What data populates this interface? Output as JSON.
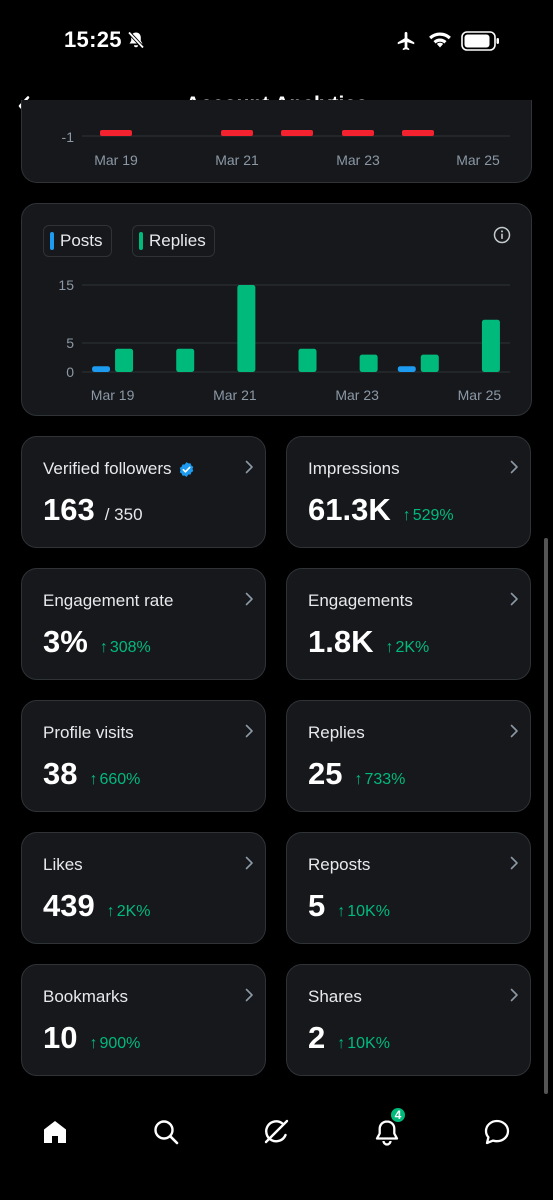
{
  "status_bar": {
    "time": "15:25"
  },
  "header": {
    "title": "Account Analytics"
  },
  "top_chart": {
    "y_tick_label": "-1",
    "x_labels": [
      "Mar 19",
      "Mar 21",
      "Mar 23",
      "Mar 25"
    ],
    "bar_color": "#f4212e"
  },
  "chart_data": {
    "type": "bar",
    "categories": [
      "Mar 19",
      "Mar 20",
      "Mar 21",
      "Mar 22",
      "Mar 23",
      "Mar 24",
      "Mar 25"
    ],
    "x_tick_labels": [
      "Mar 19",
      "Mar 21",
      "Mar 23",
      "Mar 25"
    ],
    "series": [
      {
        "name": "Posts",
        "color": "#1d9bf0",
        "values": [
          1,
          0,
          0,
          0,
          0,
          1,
          0
        ]
      },
      {
        "name": "Replies",
        "color": "#00ba7c",
        "values": [
          4,
          4,
          15,
          4,
          3,
          3,
          9
        ]
      }
    ],
    "y_ticks": [
      0,
      5,
      15
    ],
    "ylim": [
      0,
      15
    ],
    "grid": true,
    "legend_position": "top-left"
  },
  "legend": {
    "posts": "Posts",
    "replies": "Replies"
  },
  "stats": [
    {
      "label": "Verified followers",
      "value": "163",
      "total": "/ 350",
      "change": "",
      "verified": true
    },
    {
      "label": "Impressions",
      "value": "61.3K",
      "total": "",
      "change": "529%"
    },
    {
      "label": "Engagement rate",
      "value": "3%",
      "total": "",
      "change": "308%"
    },
    {
      "label": "Engagements",
      "value": "1.8K",
      "total": "",
      "change": "2K%"
    },
    {
      "label": "Profile visits",
      "value": "38",
      "total": "",
      "change": "660%"
    },
    {
      "label": "Replies",
      "value": "25",
      "total": "",
      "change": "733%"
    },
    {
      "label": "Likes",
      "value": "439",
      "total": "",
      "change": "2K%"
    },
    {
      "label": "Reposts",
      "value": "5",
      "total": "",
      "change": "10K%"
    },
    {
      "label": "Bookmarks",
      "value": "10",
      "total": "",
      "change": "900%"
    },
    {
      "label": "Shares",
      "value": "2",
      "total": "",
      "change": "10K%"
    }
  ],
  "change_arrow": "↑",
  "nav": {
    "notifications_badge": "4"
  },
  "colors": {
    "accent_green": "#00ba7c",
    "accent_blue": "#1d9bf0",
    "negative_red": "#f4212e",
    "card_bg": "#16181c",
    "border": "#2f3336"
  }
}
